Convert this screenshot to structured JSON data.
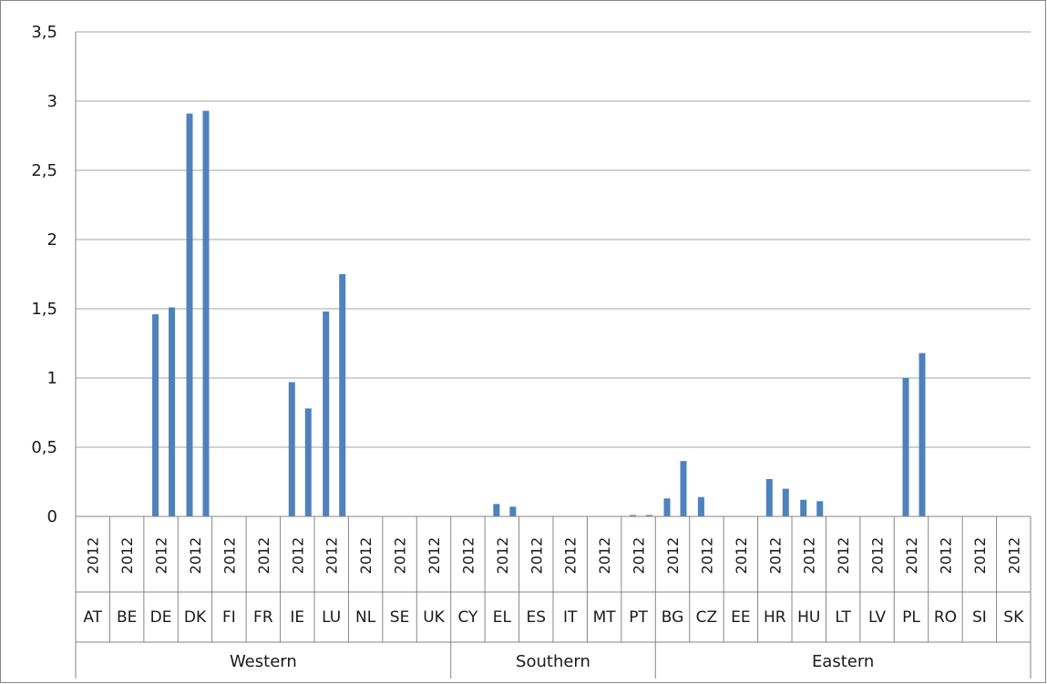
{
  "chart_data": {
    "type": "bar",
    "title": "",
    "xlabel": "",
    "ylabel": "",
    "ylim": [
      0,
      3.5
    ],
    "yticks": [
      "0",
      "0,5",
      "1",
      "1,5",
      "2",
      "2,5",
      "3",
      "3,5"
    ],
    "grid": true,
    "year_label": "2012",
    "categories": [
      "AT",
      "BE",
      "DE",
      "DK",
      "FI",
      "FR",
      "IE",
      "LU",
      "NL",
      "SE",
      "UK",
      "CY",
      "EL",
      "ES",
      "IT",
      "MT",
      "PT",
      "BG",
      "CZ",
      "EE",
      "HR",
      "HU",
      "LT",
      "LV",
      "PL",
      "RO",
      "SI",
      "SK"
    ],
    "groups": [
      {
        "name": "Western",
        "count": 11
      },
      {
        "name": "Southern",
        "count": 6
      },
      {
        "name": "Eastern",
        "count": 11
      }
    ],
    "series": [
      {
        "values": [
          0,
          0,
          1.46,
          2.91,
          0,
          0,
          0.97,
          1.48,
          0,
          0,
          0,
          0,
          0.09,
          0,
          0,
          0,
          0.01,
          0.13,
          0.14,
          0,
          0.27,
          0.12,
          0,
          0,
          1.0,
          0,
          0,
          0
        ]
      },
      {
        "values": [
          0,
          0,
          1.51,
          2.93,
          0,
          0,
          0.78,
          1.75,
          0,
          0,
          0,
          0,
          0.07,
          0,
          0,
          0,
          0.01,
          0.4,
          0,
          0,
          0.2,
          0.11,
          0,
          0,
          1.18,
          0,
          0,
          0
        ]
      }
    ],
    "colors": {
      "bar": "#4f81bd",
      "grid": "#a6a6a6",
      "axis": "#868686"
    }
  }
}
